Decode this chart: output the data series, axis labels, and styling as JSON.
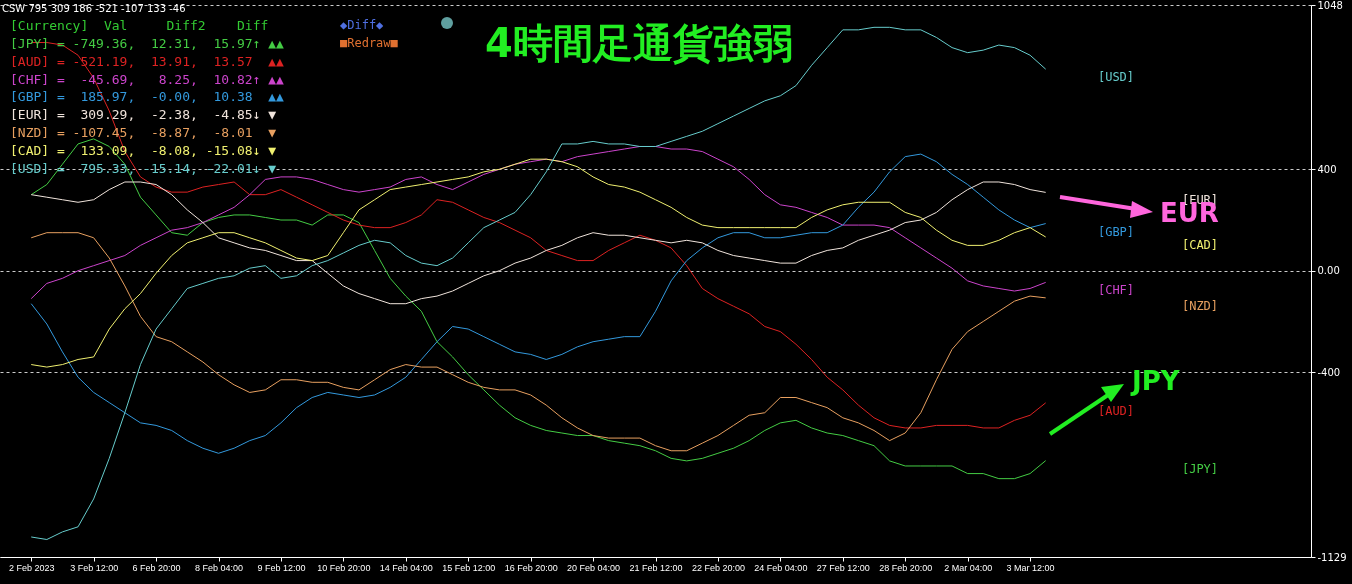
{
  "chart_data": {
    "type": "line",
    "title": "4時間足通貨強弱",
    "categories": [
      "2 Feb 2023",
      null,
      null,
      null,
      "3 Feb 12:00",
      null,
      null,
      null,
      "6 Feb 20:00",
      null,
      null,
      null,
      "8 Feb 04:00",
      null,
      null,
      null,
      "9 Feb 12:00",
      null,
      null,
      null,
      "10 Feb 20:00",
      null,
      null,
      null,
      "14 Feb 04:00",
      null,
      null,
      null,
      "15 Feb 12:00",
      null,
      null,
      null,
      "16 Feb 20:00",
      null,
      null,
      null,
      "20 Feb 04:00",
      null,
      null,
      null,
      "21 Feb 12:00",
      null,
      null,
      null,
      "22 Feb 20:00",
      null,
      null,
      null,
      "24 Feb 04:00",
      null,
      null,
      null,
      "27 Feb 12:00",
      null,
      null,
      null,
      "28 Feb 20:00",
      null,
      null,
      null,
      "2 Mar 04:00",
      null,
      null,
      null,
      "3 Mar 12:00",
      null
    ],
    "series": [
      {
        "name": "[JPY]",
        "color": "#44cc44",
        "values": [
          300,
          340,
          420,
          500,
          520,
          490,
          420,
          290,
          220,
          150,
          140,
          190,
          210,
          220,
          220,
          210,
          200,
          200,
          180,
          220,
          220,
          190,
          80,
          -30,
          -100,
          -160,
          -280,
          -340,
          -410,
          -470,
          -530,
          -580,
          -610,
          -630,
          -640,
          -650,
          -650,
          -670,
          -680,
          -690,
          -710,
          -740,
          -750,
          -740,
          -720,
          -700,
          -670,
          -630,
          -600,
          -590,
          -620,
          -640,
          -650,
          -670,
          -690,
          -750,
          -770,
          -770,
          -770,
          -770,
          -800,
          -800,
          -820,
          -820,
          -800,
          -749
        ]
      },
      {
        "name": "[AUD]",
        "color": "#dd2222",
        "values": [
          900,
          900,
          890,
          850,
          760,
          630,
          470,
          370,
          330,
          310,
          310,
          330,
          340,
          350,
          300,
          300,
          320,
          290,
          260,
          230,
          200,
          180,
          170,
          170,
          190,
          220,
          280,
          270,
          240,
          210,
          190,
          160,
          130,
          80,
          60,
          40,
          40,
          80,
          110,
          140,
          120,
          90,
          20,
          -70,
          -110,
          -140,
          -170,
          -220,
          -240,
          -290,
          -350,
          -420,
          -470,
          -530,
          -580,
          -610,
          -620,
          -620,
          -610,
          -610,
          -610,
          -620,
          -620,
          -590,
          -570,
          -521
        ]
      },
      {
        "name": "[CHF]",
        "color": "#cc44cc",
        "values": [
          -110,
          -50,
          -30,
          0,
          20,
          40,
          60,
          100,
          130,
          160,
          170,
          190,
          220,
          250,
          300,
          360,
          370,
          370,
          360,
          340,
          320,
          310,
          320,
          330,
          360,
          370,
          340,
          320,
          350,
          380,
          400,
          420,
          430,
          440,
          430,
          450,
          460,
          470,
          480,
          490,
          490,
          480,
          480,
          470,
          440,
          410,
          360,
          300,
          260,
          250,
          230,
          210,
          180,
          180,
          180,
          170,
          130,
          90,
          50,
          10,
          -40,
          -60,
          -70,
          -80,
          -70,
          -46
        ]
      },
      {
        "name": "[GBP]",
        "color": "#3399dd",
        "values": [
          -130,
          -210,
          -320,
          -420,
          -480,
          -520,
          -560,
          -600,
          -610,
          -630,
          -670,
          -700,
          -720,
          -700,
          -670,
          -650,
          -600,
          -540,
          -500,
          -480,
          -490,
          -500,
          -490,
          -460,
          -420,
          -350,
          -280,
          -220,
          -230,
          -260,
          -290,
          -320,
          -330,
          -350,
          -330,
          -300,
          -280,
          -270,
          -260,
          -260,
          -160,
          -40,
          40,
          90,
          130,
          150,
          150,
          130,
          130,
          140,
          150,
          150,
          180,
          250,
          310,
          390,
          450,
          460,
          430,
          380,
          340,
          290,
          240,
          200,
          170,
          186
        ]
      },
      {
        "name": "[EUR]",
        "color": "#f0e4dc",
        "values": [
          300,
          290,
          280,
          270,
          280,
          320,
          350,
          350,
          340,
          300,
          240,
          190,
          130,
          110,
          90,
          80,
          60,
          40,
          40,
          -10,
          -60,
          -90,
          -110,
          -130,
          -130,
          -110,
          -100,
          -80,
          -50,
          -20,
          0,
          30,
          50,
          80,
          100,
          130,
          150,
          140,
          140,
          130,
          120,
          110,
          120,
          110,
          80,
          60,
          50,
          40,
          30,
          30,
          60,
          80,
          90,
          120,
          140,
          160,
          190,
          200,
          230,
          280,
          320,
          350,
          350,
          340,
          320,
          309
        ]
      },
      {
        "name": "[NZD]",
        "color": "#e8a060",
        "values": [
          130,
          150,
          150,
          150,
          130,
          50,
          -60,
          -180,
          -260,
          -280,
          -320,
          -360,
          -410,
          -450,
          -480,
          -470,
          -430,
          -430,
          -440,
          -440,
          -460,
          -470,
          -430,
          -390,
          -370,
          -380,
          -380,
          -410,
          -440,
          -460,
          -470,
          -470,
          -490,
          -530,
          -580,
          -620,
          -650,
          -660,
          -660,
          -660,
          -690,
          -710,
          -710,
          -680,
          -650,
          -610,
          -570,
          -560,
          -500,
          -500,
          -520,
          -540,
          -580,
          -600,
          -630,
          -670,
          -640,
          -560,
          -430,
          -310,
          -240,
          -200,
          -160,
          -120,
          -100,
          -107
        ]
      },
      {
        "name": "[CAD]",
        "color": "#f0f070",
        "values": [
          -370,
          -380,
          -370,
          -350,
          -340,
          -230,
          -150,
          -90,
          -10,
          60,
          110,
          130,
          150,
          150,
          130,
          110,
          80,
          50,
          40,
          60,
          150,
          240,
          280,
          320,
          330,
          340,
          350,
          360,
          370,
          390,
          400,
          420,
          440,
          440,
          430,
          410,
          370,
          340,
          330,
          310,
          280,
          250,
          210,
          180,
          170,
          170,
          170,
          170,
          170,
          170,
          210,
          240,
          260,
          270,
          270,
          270,
          230,
          210,
          160,
          120,
          100,
          100,
          120,
          150,
          170,
          133
        ]
      },
      {
        "name": "[USD]",
        "color": "#66cccc",
        "values": [
          -1050,
          -1060,
          -1030,
          -1010,
          -900,
          -740,
          -560,
          -370,
          -230,
          -150,
          -70,
          -50,
          -30,
          -20,
          10,
          20,
          -30,
          -20,
          20,
          40,
          70,
          100,
          120,
          110,
          60,
          30,
          20,
          50,
          110,
          170,
          200,
          230,
          300,
          390,
          500,
          500,
          510,
          500,
          500,
          490,
          490,
          510,
          530,
          550,
          580,
          610,
          640,
          670,
          690,
          730,
          810,
          880,
          950,
          950,
          960,
          960,
          950,
          950,
          920,
          880,
          860,
          870,
          890,
          880,
          850,
          795
        ]
      }
    ],
    "ylim": [
      -1129,
      1048
    ],
    "yticks": [
      1048,
      400,
      {
        "value": 0,
        "label": "0.00"
      },
      -400,
      -1129
    ],
    "grid": "y",
    "annotations": [
      "CSW 795 309 186 -521 -107 133 -46",
      "[Currency]  Val     Diff2    Diff",
      "[JPY] = -749.36,  12.31,  15.97↑ ▲▲",
      "[AUD] = -521.19,  13.91,  13.57  ▲▲",
      "[CHF] =  -45.69,   8.25,  10.82↑ ▲▲",
      "[GBP] =  185.97,  -0.00,  10.38  ▲▲",
      "[EUR] =  309.29,  -2.38,  -4.85↓ ▼",
      "[NZD] = -107.45,  -8.87,  -8.01  ▼",
      "[CAD] =  133.09,  -8.08, -15.08↓ ▼",
      "[USD] =  795.33, -15.14, -22.01↓ ▼",
      "◆Diff◆",
      "■Redraw■",
      "EUR",
      "JPY"
    ]
  }
}
